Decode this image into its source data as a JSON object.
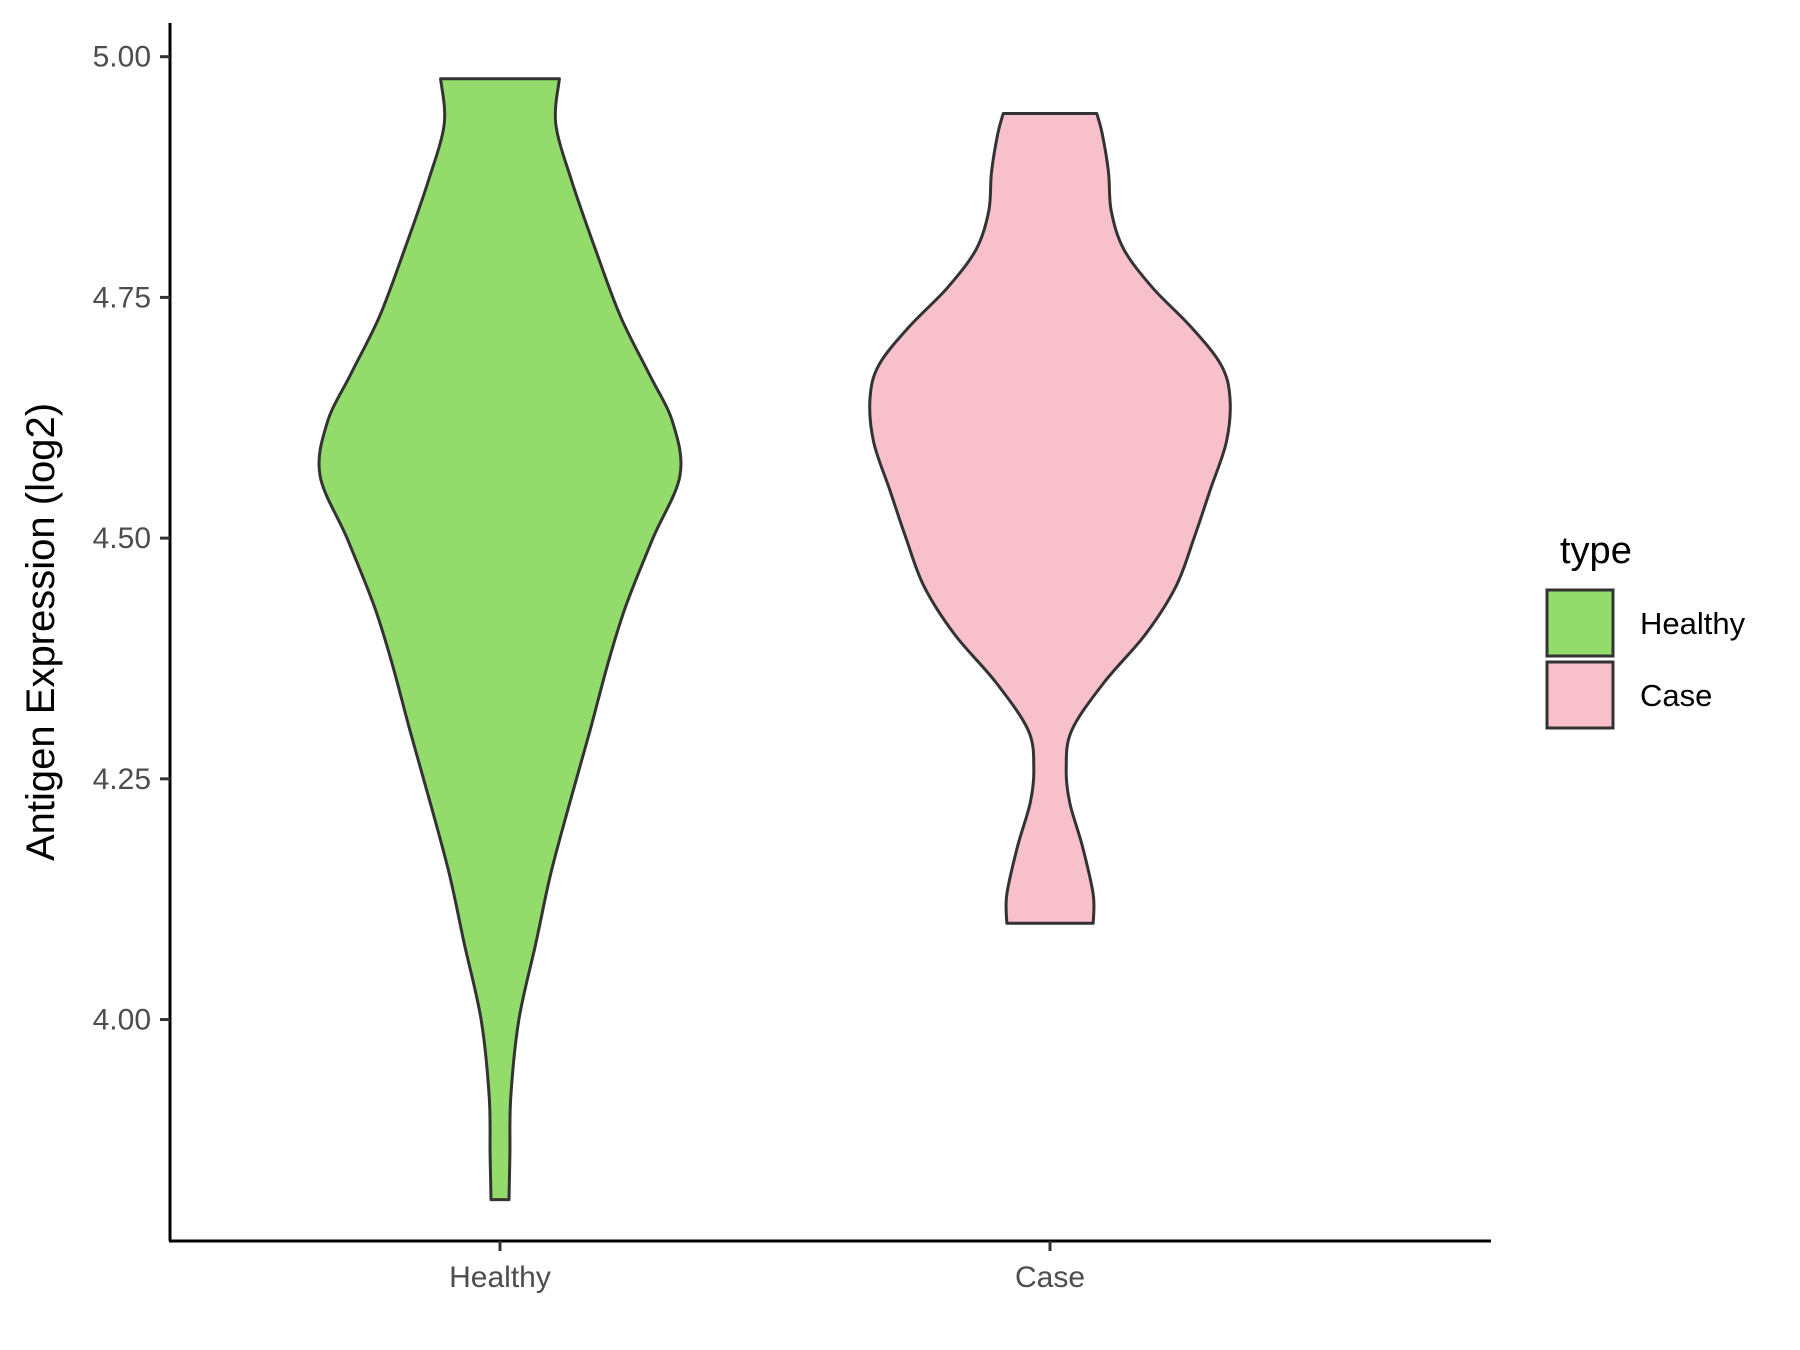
{
  "chart_data": {
    "type": "violin",
    "title": "",
    "xlabel": "",
    "ylabel": "Antigen Expression (log2)",
    "ylim": [
      3.77,
      5.035
    ],
    "yticks": [
      "4.00",
      "4.25",
      "4.50",
      "4.75",
      "5.00"
    ],
    "grid": false,
    "categories": [
      "Healthy",
      "Case"
    ],
    "legend": {
      "title": "type",
      "placement": "right",
      "entries": [
        {
          "label": "Healthy",
          "color": "#93dc6b"
        },
        {
          "label": "Case",
          "color": "#f8c0cb"
        }
      ]
    },
    "series": [
      {
        "name": "Healthy",
        "color": "#93dc6b",
        "min": 3.813,
        "max": 4.977,
        "density": [
          [
            3.813,
            0.05
          ],
          [
            3.86,
            0.055
          ],
          [
            3.92,
            0.06
          ],
          [
            4.0,
            0.105
          ],
          [
            4.08,
            0.2
          ],
          [
            4.15,
            0.28
          ],
          [
            4.22,
            0.38
          ],
          [
            4.3,
            0.5
          ],
          [
            4.37,
            0.6
          ],
          [
            4.43,
            0.7
          ],
          [
            4.5,
            0.85
          ],
          [
            4.565,
            1.0
          ],
          [
            4.62,
            0.96
          ],
          [
            4.67,
            0.83
          ],
          [
            4.73,
            0.67
          ],
          [
            4.8,
            0.53
          ],
          [
            4.87,
            0.4
          ],
          [
            4.93,
            0.31
          ],
          [
            4.977,
            0.33
          ]
        ]
      },
      {
        "name": "Case",
        "color": "#f8c0cb",
        "min": 4.1,
        "max": 4.941,
        "density": [
          [
            4.1,
            0.24
          ],
          [
            4.13,
            0.24
          ],
          [
            4.18,
            0.18
          ],
          [
            4.225,
            0.11
          ],
          [
            4.26,
            0.09
          ],
          [
            4.3,
            0.12
          ],
          [
            4.35,
            0.3
          ],
          [
            4.4,
            0.53
          ],
          [
            4.45,
            0.7
          ],
          [
            4.5,
            0.8
          ],
          [
            4.55,
            0.89
          ],
          [
            4.6,
            0.98
          ],
          [
            4.645,
            1.0
          ],
          [
            4.68,
            0.95
          ],
          [
            4.72,
            0.78
          ],
          [
            4.76,
            0.57
          ],
          [
            4.8,
            0.41
          ],
          [
            4.84,
            0.34
          ],
          [
            4.88,
            0.325
          ],
          [
            4.92,
            0.29
          ],
          [
            4.941,
            0.26
          ]
        ]
      }
    ]
  }
}
